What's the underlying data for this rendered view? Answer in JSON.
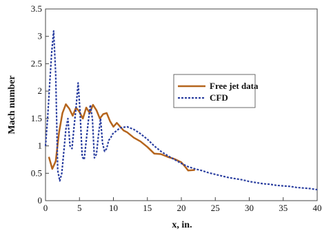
{
  "chart_data": {
    "type": "line",
    "xlabel": "x, in.",
    "ylabel": "Mach number",
    "xlim": [
      0,
      40
    ],
    "ylim": [
      0,
      3.5
    ],
    "xticks": [
      "0",
      "5",
      "10",
      "15",
      "20",
      "25",
      "30",
      "35",
      "40"
    ],
    "yticks": [
      "0",
      "0.5",
      "1",
      "1.5",
      "2",
      "2.5",
      "3",
      "3.5"
    ],
    "grid": false,
    "legend_position": "right",
    "series": [
      {
        "name": "Free jet data",
        "color": "#b5651d",
        "style": "solid",
        "x": [
          0.5,
          1.0,
          1.5,
          2.0,
          2.5,
          3.0,
          3.5,
          4.0,
          4.5,
          5.0,
          5.5,
          6.0,
          6.5,
          7.0,
          7.5,
          8.0,
          8.5,
          9.0,
          9.5,
          10.0,
          10.5,
          11.0,
          11.5,
          12.0,
          13.0,
          14.0,
          15.0,
          16.0,
          17.0,
          18.0,
          19.0,
          20.0,
          20.5,
          21.0,
          22.0
        ],
        "y": [
          0.8,
          0.58,
          0.72,
          1.25,
          1.6,
          1.76,
          1.68,
          1.55,
          1.7,
          1.62,
          1.5,
          1.7,
          1.6,
          1.75,
          1.65,
          1.5,
          1.58,
          1.6,
          1.45,
          1.35,
          1.42,
          1.35,
          1.28,
          1.25,
          1.15,
          1.08,
          0.98,
          0.86,
          0.85,
          0.8,
          0.76,
          0.7,
          0.63,
          0.55,
          0.56
        ]
      },
      {
        "name": "CFD",
        "color": "#2b3fa0",
        "style": "dashed",
        "x": [
          0,
          0.3,
          0.6,
          0.9,
          1.2,
          1.5,
          1.8,
          2.1,
          2.4,
          2.7,
          3.0,
          3.3,
          3.6,
          3.9,
          4.2,
          4.5,
          4.8,
          5.1,
          5.4,
          5.7,
          6.0,
          6.3,
          6.6,
          6.9,
          7.2,
          7.5,
          7.8,
          8.1,
          8.4,
          8.7,
          9.0,
          9.3,
          9.6,
          9.9,
          10.5,
          11.0,
          12.0,
          13.0,
          14.0,
          15.0,
          16.0,
          17.0,
          18.0,
          19.0,
          20.0,
          21.0,
          22.0,
          23.0,
          24.0,
          25.0,
          26.0,
          27.0,
          28.0,
          29.0,
          30.0,
          31.0,
          32.0,
          33.0,
          34.0,
          35.0,
          36.0,
          37.0,
          38.0,
          39.0,
          40.0
        ],
        "y": [
          1.0,
          1.5,
          2.1,
          2.7,
          3.1,
          2.3,
          0.55,
          0.36,
          0.5,
          0.9,
          1.3,
          1.5,
          1.0,
          0.95,
          1.35,
          1.7,
          2.15,
          1.6,
          0.8,
          0.75,
          1.1,
          1.45,
          1.75,
          1.5,
          0.78,
          0.85,
          1.2,
          1.5,
          1.05,
          0.9,
          0.95,
          1.1,
          1.15,
          1.22,
          1.28,
          1.33,
          1.35,
          1.3,
          1.22,
          1.12,
          1.0,
          0.9,
          0.82,
          0.75,
          0.68,
          0.62,
          0.58,
          0.55,
          0.51,
          0.48,
          0.45,
          0.42,
          0.4,
          0.38,
          0.35,
          0.33,
          0.31,
          0.3,
          0.28,
          0.27,
          0.26,
          0.24,
          0.23,
          0.22,
          0.2
        ]
      }
    ]
  }
}
